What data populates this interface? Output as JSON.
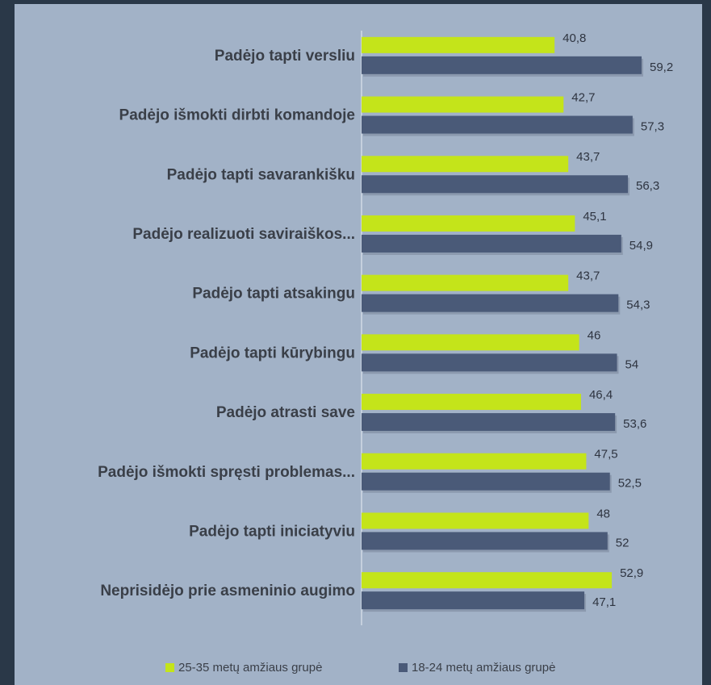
{
  "chart_data": {
    "type": "barh",
    "categories": [
      "Padėjo tapti versliu",
      "Padėjo išmokti dirbti komandoje",
      "Padėjo tapti savarankišku",
      "Padėjo realizuoti saviraiškos...",
      "Padėjo tapti atsakingu",
      "Padėjo tapti kūrybingu",
      "Padėjo atrasti save",
      "Padėjo išmokti spręsti problemas...",
      "Padėjo tapti iniciatyviu",
      "Neprisidėjo prie asmeninio augimo"
    ],
    "series": [
      {
        "name": "25-35 metų amžiaus grupė",
        "color": "#c4e41a",
        "values": [
          40.8,
          42.7,
          43.7,
          45.1,
          43.7,
          46,
          46.4,
          47.5,
          48,
          52.9
        ],
        "value_labels": [
          "40,8",
          "42,7",
          "43,7",
          "45,1",
          "43,7",
          "46",
          "46,4",
          "47,5",
          "48",
          "52,9"
        ]
      },
      {
        "name": "18-24 metų amžiaus grupė",
        "color": "#4a5a78",
        "values": [
          59.2,
          57.3,
          56.3,
          54.9,
          54.3,
          54,
          53.6,
          52.5,
          52,
          47.1
        ],
        "value_labels": [
          "59,2",
          "57,3",
          "56,3",
          "54,9",
          "54,3",
          "54",
          "53,6",
          "52,5",
          "52",
          "47,1"
        ]
      }
    ],
    "legend": "bottom"
  }
}
